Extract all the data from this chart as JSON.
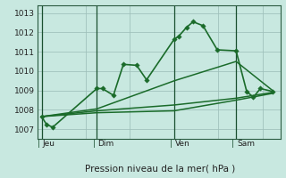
{
  "background_color": "#c8e8e0",
  "plot_bg": "#c8e8e0",
  "grid_color": "#9dbfba",
  "line_color": "#1a6b2a",
  "ylabel": "Pression niveau de la mer( hPa )",
  "ylim": [
    1006.5,
    1013.4
  ],
  "yticks": [
    1007,
    1008,
    1009,
    1010,
    1011,
    1012,
    1013
  ],
  "xlim": [
    -0.2,
    10.8
  ],
  "vlines_x": [
    0.0,
    2.5,
    6.0,
    8.8
  ],
  "vlines_labels": [
    "Jeu",
    "Dim",
    "Ven",
    "Sam"
  ],
  "main_x": [
    0.0,
    0.22,
    0.5,
    2.5,
    2.75,
    3.25,
    3.7,
    4.3,
    4.75,
    6.0,
    6.2,
    6.55,
    6.85,
    7.3,
    7.95,
    8.8,
    9.28,
    9.58,
    9.9,
    10.45
  ],
  "main_y": [
    1007.65,
    1007.25,
    1007.1,
    1009.1,
    1009.1,
    1008.75,
    1010.35,
    1010.3,
    1009.55,
    1011.65,
    1011.8,
    1012.25,
    1012.55,
    1012.35,
    1011.1,
    1011.05,
    1008.95,
    1008.65,
    1009.1,
    1008.95
  ],
  "trend1_x": [
    0.0,
    2.5,
    6.0,
    8.8,
    10.45
  ],
  "trend1_y": [
    1007.65,
    1007.95,
    1008.25,
    1008.6,
    1008.9
  ],
  "trend2_x": [
    0.0,
    2.5,
    6.0,
    8.8,
    10.45
  ],
  "trend2_y": [
    1007.65,
    1007.85,
    1007.95,
    1008.5,
    1008.85
  ],
  "trend3_x": [
    0.0,
    2.5,
    6.0,
    8.8,
    10.45
  ],
  "trend3_y": [
    1007.65,
    1008.05,
    1009.5,
    1010.5,
    1009.0
  ]
}
